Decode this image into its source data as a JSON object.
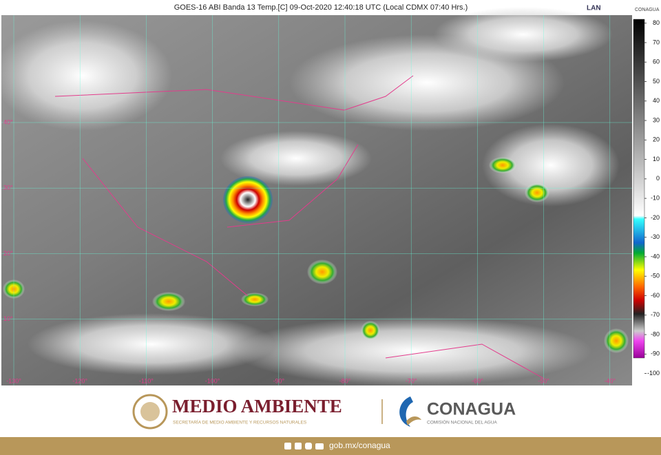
{
  "header": {
    "title": "GOES-16 ABI Banda 13 Temp.[C] 09-Oct-2020 12:40:18 UTC (Local CDMX  07:40 Hrs.)",
    "logo_left": "LAN",
    "logo_right": "CONAGUA"
  },
  "map": {
    "latitudes": [
      {
        "value": 40,
        "label": "40°"
      },
      {
        "value": 30,
        "label": "30°"
      },
      {
        "value": 20,
        "label": "20°"
      },
      {
        "value": 10,
        "label": "10°"
      }
    ],
    "longitudes": [
      {
        "value": -130,
        "label": "-130°"
      },
      {
        "value": -120,
        "label": "-120°"
      },
      {
        "value": -110,
        "label": "-110°"
      },
      {
        "value": -100,
        "label": "-100°"
      },
      {
        "value": -90,
        "label": "-90°"
      },
      {
        "value": -80,
        "label": "-80°"
      },
      {
        "value": -70,
        "label": "-70°"
      },
      {
        "value": -60,
        "label": "-60°"
      },
      {
        "value": -50,
        "label": "-50°"
      },
      {
        "value": -40,
        "label": "-40°"
      }
    ]
  },
  "color_scale": {
    "lim": [
      82,
      -92
    ],
    "ticks": [
      80,
      70,
      60,
      50,
      40,
      30,
      20,
      10,
      0,
      -10,
      -20,
      -30,
      -40,
      -50,
      -60,
      -70,
      -80,
      -90,
      -100
    ]
  },
  "footer": {
    "brand_left": "MEDIO AMBIENTE",
    "brand_left_sub": "SECRETARÍA DE MEDIO AMBIENTE Y RECURSOS NATURALES",
    "brand_right": "CONAGUA",
    "brand_right_sub": "COMISIÓN NACIONAL DEL AGUA",
    "url": "gob.mx/conagua"
  }
}
